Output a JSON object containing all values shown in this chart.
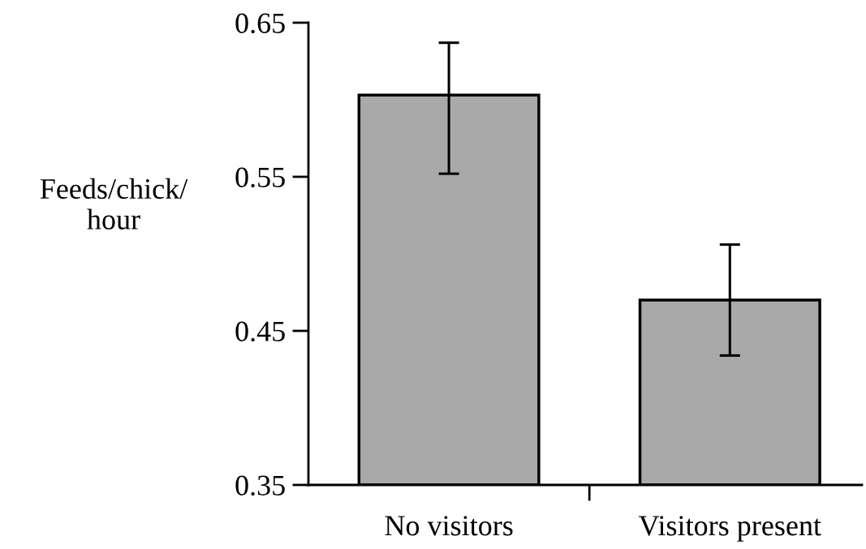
{
  "chart_data": {
    "type": "bar",
    "ylabel": "Feeds/chick/\nhour",
    "categories": [
      "No visitors",
      "Visitors present"
    ],
    "values": [
      0.603,
      0.47
    ],
    "errors": [
      [
        0.552,
        0.637
      ],
      [
        0.434,
        0.506
      ]
    ],
    "color": "#a9a9a9",
    "ylim": [
      0.35,
      0.65
    ],
    "yticks": [
      0.35,
      0.45,
      0.55,
      0.65
    ],
    "grid": false,
    "legend": false
  }
}
